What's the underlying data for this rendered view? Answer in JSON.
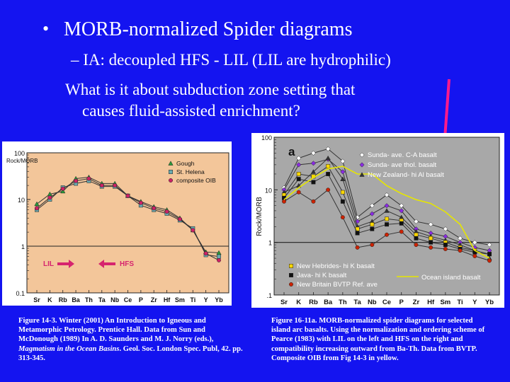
{
  "slide": {
    "bullet": "•",
    "title": "MORB-normalized Spider diagrams",
    "subtitle": "– IA: decoupled HFS - LIL (LIL are hydrophilic)",
    "question_line1": "What is it about subduction zone setting that",
    "question_line2": "causes fluid-assisted enrichment?",
    "caption_left_a": "Figure 14-3. Winter (2001) An Introduction to Igneous and Metamorphic Petrology. Prentice Hall. Data from Sun and McDonough (1989) In A. D. Saunders and M. J. Norry (eds.), ",
    "caption_left_italic": "Magmatism in the Ocean Basins",
    "caption_left_b": ". Geol. Soc. London Spec. Publ, 42. pp. 313-345.",
    "caption_right": "Figure 16-11a. MORB-normalized spider diagrams for selected island arc basalts. Using the normalization and ordering scheme of Pearce (1983) with LIL on the left and HFS on the right and compatibility increasing outward from Ba-Th. Data from BVTP. Composite OIB from Fig 14-3 in yellow."
  },
  "colors": {
    "background": "#1414f0",
    "arrow": "#ff1a8c"
  },
  "chart_data": [
    {
      "type": "line",
      "ylabel": "Rock/MORB",
      "yscale": "log",
      "ylim": [
        0.1,
        100
      ],
      "yticks": [
        "100",
        "10",
        "1",
        "0.1"
      ],
      "reference_line": 1,
      "categories": [
        "Sr",
        "K",
        "Rb",
        "Ba",
        "Th",
        "Ta",
        "Nb",
        "Ce",
        "P",
        "Zr",
        "Hf",
        "Sm",
        "Ti",
        "Y",
        "Yb"
      ],
      "series": [
        {
          "name": "Gough",
          "color": "#2a9a3a",
          "marker": "triangle",
          "values": [
            8,
            13,
            15,
            28,
            30,
            22,
            22,
            12,
            9,
            7,
            6,
            4,
            2.2,
            0.75,
            0.72
          ]
        },
        {
          "name": "St. Helena",
          "color": "#6aaab0",
          "marker": "square",
          "values": [
            6,
            10,
            18,
            22,
            25,
            19,
            19,
            12,
            7.5,
            6,
            5,
            3.6,
            2.4,
            0.65,
            0.6
          ]
        },
        {
          "name": "composite OIB",
          "color": "#cc2266",
          "marker": "circle",
          "values": [
            6.5,
            11,
            17,
            25,
            28,
            20,
            20,
            12,
            8.5,
            6.5,
            5.5,
            3.8,
            2.2,
            0.7,
            0.5
          ]
        }
      ],
      "annotations": [
        "LIL",
        "HFS"
      ]
    },
    {
      "type": "line",
      "panel_label": "a",
      "ylabel": "Rock/MORB",
      "yscale": "log",
      "ylim": [
        0.1,
        100
      ],
      "yticks": [
        "100",
        "10",
        "1",
        ".1"
      ],
      "reference_line": 1,
      "categories": [
        "Sr",
        "K",
        "Rb",
        "Ba",
        "Th",
        "Ta",
        "Nb",
        "Ce",
        "P",
        "Zr",
        "Hf",
        "Sm",
        "Ti",
        "Y",
        "Yb"
      ],
      "series": [
        {
          "name": "Sunda- ave. C-A basalt",
          "color": "#ffffff",
          "marker": "diamond",
          "values": [
            11,
            40,
            50,
            60,
            35,
            3,
            5,
            8,
            5,
            2.5,
            2.2,
            1.8,
            1.2,
            1.0,
            0.9
          ]
        },
        {
          "name": "Sunda- ave thol. basalt",
          "color": "#8a2be2",
          "marker": "diamond",
          "values": [
            10,
            30,
            32,
            38,
            22,
            2.5,
            3.5,
            5,
            4,
            1.8,
            1.5,
            1.3,
            1.0,
            0.8,
            0.7
          ]
        },
        {
          "name": "New Zealand- hi Al basalt",
          "color": "#333333",
          "marker": "triangle",
          "values": [
            9,
            12,
            22,
            40,
            16,
            2,
            2.5,
            4,
            3,
            1.6,
            1.3,
            1.1,
            0.9,
            0.7,
            0.5
          ]
        },
        {
          "name": "New Hebrides- hi K basalt",
          "color": "#ffd700",
          "marker": "square",
          "values": [
            8,
            20,
            18,
            28,
            9,
            1.8,
            2.2,
            2.8,
            2.6,
            1.4,
            1.2,
            1.0,
            0.8,
            0.7,
            0.6
          ]
        },
        {
          "name": "Java- hi K basalt",
          "color": "#111111",
          "marker": "square",
          "values": [
            7,
            16,
            14,
            20,
            6,
            1.5,
            1.8,
            2.2,
            2.3,
            1.2,
            1.0,
            0.9,
            0.75,
            0.65,
            0.6
          ]
        },
        {
          "name": "New Britain BVTP Ref. ave",
          "color": "#cc2200",
          "marker": "circle",
          "values": [
            6,
            9,
            6,
            10,
            3,
            0.8,
            0.9,
            1.4,
            1.6,
            0.9,
            0.8,
            0.75,
            0.7,
            0.55,
            0.45
          ]
        },
        {
          "name": "Ocean island basalt",
          "color": "#e6e600",
          "marker": "none",
          "values": [
            6.5,
            11,
            17,
            25,
            28,
            20,
            20,
            12,
            8.5,
            6.5,
            5.5,
            3.8,
            2.2,
            0.7,
            0.5
          ]
        }
      ]
    }
  ]
}
